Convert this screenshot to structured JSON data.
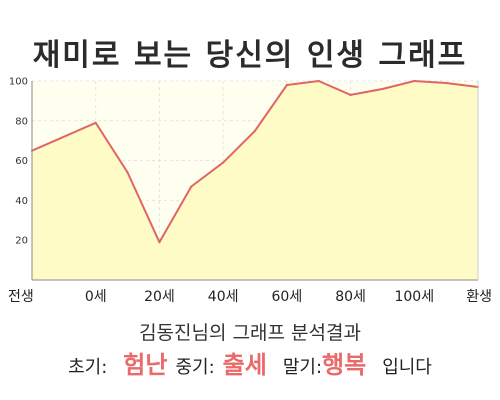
{
  "title": "재미로 보는 당신의 인생 그래프",
  "chart_data": {
    "type": "area",
    "x_labels": [
      "전생",
      "0세",
      "20세",
      "40세",
      "60세",
      "80세",
      "100세",
      "환생"
    ],
    "y_ticks": [
      20,
      40,
      60,
      80,
      100
    ],
    "ylim": [
      0,
      100
    ],
    "grid": true,
    "series": [
      {
        "x": [
          "전생",
          "0세",
          "10세",
          "20세",
          "30세",
          "40세",
          "50세",
          "60세",
          "70세",
          "80세",
          "90세",
          "100세",
          "110세",
          "환생"
        ],
        "values": [
          65,
          79,
          54,
          19,
          47,
          59,
          75,
          98,
          100,
          93,
          96,
          100,
          99,
          97
        ]
      }
    ],
    "colors": {
      "line": "#e06666",
      "fill": "#fffbc6",
      "plot_bg": "#fffff0"
    }
  },
  "result": {
    "heading": "김동진님의 그래프 분석결과",
    "early_label": "초기:",
    "early_value": "험난",
    "middle_label": "중기:",
    "middle_value": "출세",
    "late_label": "말기:",
    "late_value": "행복",
    "ending": "입니다"
  }
}
